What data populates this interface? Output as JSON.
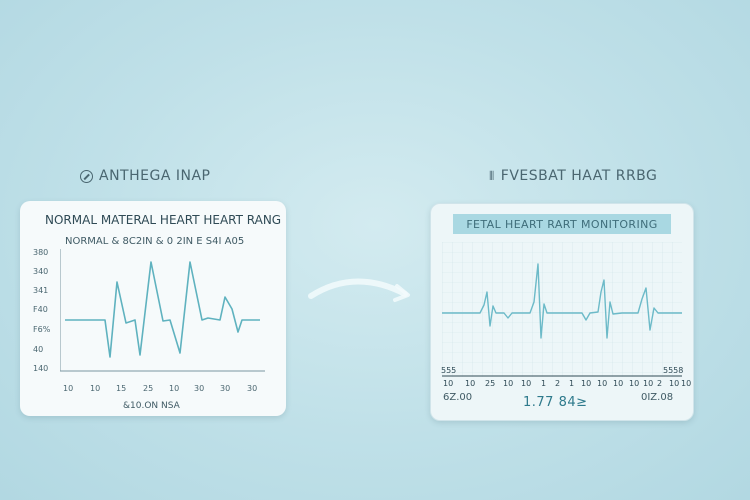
{
  "left_panel": {
    "heading": "ANTHEGA INAP",
    "heading_icon": "circle-arrow-icon",
    "title": "NORMAL MATERAL HEART HEART RANG",
    "subtitle": "NORMAL & 8C2IN & 0 2IN E S4I A05",
    "y_labels": [
      "380",
      "340",
      "341",
      "F40",
      "F6%",
      "40",
      "140"
    ],
    "x_labels": [
      "10",
      "10",
      "15",
      "25",
      "10",
      "30",
      "30",
      "30"
    ],
    "footer": "&10.ON NSA"
  },
  "right_panel": {
    "heading": "FVESBAT HAAT RRBG",
    "banner": "FETAL HEART RART MONITORING",
    "left_side_value": "555",
    "right_side_value": "5558",
    "x_labels": [
      "10",
      "10",
      "25",
      "10",
      "10",
      "1",
      "2",
      "1",
      "10",
      "10",
      "10",
      "10",
      "10",
      "2",
      "10",
      "10"
    ],
    "stat_left": "6Z.00",
    "stat_center": "1.77 84≥",
    "stat_right": "0IZ.08"
  },
  "colors": {
    "background": "#bfe0e8",
    "trace": "#5fb2bf",
    "card": "#f6fafb"
  }
}
